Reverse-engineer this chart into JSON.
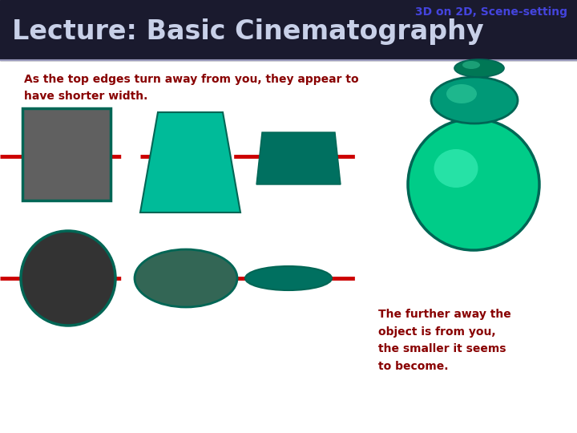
{
  "bg_color": "#ffffff",
  "header_bg": "#1a1a2e",
  "title_text": "3D on 2D, Scene-setting",
  "title_color": "#4444dd",
  "title_fontsize": 10,
  "lecture_text": "Lecture: Basic Cinematography",
  "lecture_color": "#c8d0e8",
  "lecture_fontsize": 24,
  "body_text1": "As the top edges turn away from you, they appear to\nhave shorter width.",
  "body_text_color": "#880000",
  "body_fontsize": 10,
  "body_text2": "The further away the\nobject is from you,\nthe smaller it seems\nto become.",
  "dashed_color": "#cc0000",
  "teal_border": "#006655",
  "teal_light": "#00bb99",
  "teal_mid": "#009977",
  "teal_dark": "#007060",
  "teal_darker": "#005544",
  "gray_rect": "#606060",
  "gray_circle": "#333333",
  "green_big": "#00cc88",
  "green_big_hi": "#55ffcc",
  "green_med": "#009977",
  "green_med_hi": "#44ddaa",
  "green_small": "#007755"
}
